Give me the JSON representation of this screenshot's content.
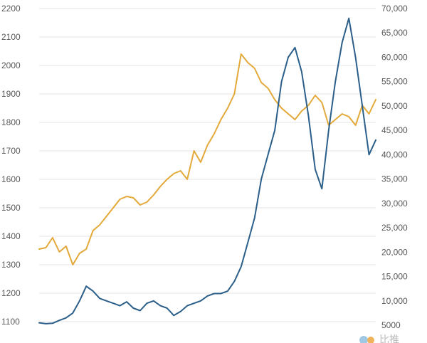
{
  "chart_data": {
    "type": "line",
    "title": "",
    "xlabel": "",
    "grid": true,
    "legend": "none",
    "y_left": {
      "label": "",
      "range": [
        1050,
        2200
      ],
      "ticks": [
        "2200",
        "2100",
        "2000",
        "1900",
        "1800",
        "1700",
        "1600",
        "1500",
        "1400",
        "1300",
        "1200",
        "1100"
      ],
      "tick_values": [
        2200,
        2100,
        2000,
        1900,
        1800,
        1700,
        1600,
        1500,
        1400,
        1300,
        1200,
        1100
      ]
    },
    "y_right": {
      "label": "",
      "range": [
        2000,
        70000
      ],
      "ticks": [
        "70,000",
        "65,000",
        "60,000",
        "55,000",
        "50,000",
        "45,000",
        "40,000",
        "35,000",
        "30,000",
        "25,000",
        "20,000",
        "15,000",
        "10,000",
        "5000"
      ],
      "tick_values": [
        70000,
        65000,
        60000,
        55000,
        50000,
        45000,
        40000,
        35000,
        30000,
        25000,
        20000,
        15000,
        10000,
        5000
      ]
    },
    "x": [
      0,
      2,
      4,
      6,
      8,
      10,
      12,
      14,
      16,
      18,
      20,
      22,
      24,
      26,
      28,
      30,
      32,
      34,
      36,
      38,
      40,
      42,
      44,
      46,
      48,
      50,
      52,
      54,
      56,
      58,
      60,
      62,
      64,
      66,
      68,
      70,
      72,
      74,
      76,
      78,
      80,
      82,
      84,
      86,
      88,
      90,
      92,
      94,
      96,
      98,
      100
    ],
    "series": [
      {
        "axis": "left",
        "color": "#e3a93a",
        "values": [
          1355,
          1360,
          1395,
          1345,
          1365,
          1300,
          1340,
          1355,
          1420,
          1440,
          1470,
          1500,
          1530,
          1540,
          1535,
          1510,
          1520,
          1545,
          1575,
          1600,
          1620,
          1630,
          1600,
          1700,
          1660,
          1720,
          1760,
          1810,
          1850,
          1900,
          2040,
          2010,
          1990,
          1940,
          1920,
          1880,
          1850,
          1830,
          1810,
          1840,
          1860,
          1895,
          1870,
          1790,
          1810,
          1830,
          1820,
          1790,
          1860,
          1830,
          1880
        ]
      },
      {
        "axis": "right",
        "color": "#2b5f8a",
        "values": [
          5500,
          5300,
          5400,
          6000,
          6500,
          7500,
          10000,
          13000,
          12000,
          10500,
          10000,
          9500,
          9000,
          9800,
          8500,
          8000,
          9500,
          10000,
          9000,
          8500,
          7000,
          7800,
          9000,
          9500,
          10000,
          11000,
          11500,
          11500,
          12000,
          14000,
          17000,
          22000,
          27000,
          35000,
          40000,
          45000,
          55000,
          60000,
          62000,
          57000,
          48000,
          37000,
          33000,
          45000,
          55000,
          63000,
          68000,
          60000,
          50000,
          40000,
          43000
        ]
      }
    ],
    "watermark": "比推"
  }
}
